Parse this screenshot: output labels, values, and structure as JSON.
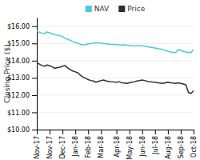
{
  "chart_data": {
    "type": "line",
    "y_label": "Closing Price ($)",
    "categories": [
      "Nov-17",
      null,
      null,
      null,
      null,
      "Nov-17",
      null,
      null,
      null,
      null,
      "Dec-17",
      null,
      null,
      null,
      null,
      "Jan-18",
      null,
      null,
      null,
      null,
      "Feb-18",
      null,
      null,
      null,
      null,
      "Mar-18",
      null,
      null,
      null,
      null,
      null,
      "Apr-18",
      null,
      null,
      null,
      null,
      "May-18",
      null,
      null,
      null,
      null,
      "Jun-18",
      null,
      null,
      null,
      null,
      "Jul-18",
      null,
      null,
      null,
      null,
      "Aug-18",
      null,
      null,
      null,
      null,
      "Sep-18",
      null,
      null,
      null,
      null,
      "Oct-18"
    ],
    "series": [
      {
        "name": "NAV",
        "color": "#4dc8d8",
        "values": [
          15.72,
          15.65,
          15.6,
          15.58,
          15.67,
          15.62,
          15.55,
          15.52,
          15.48,
          15.45,
          15.4,
          15.3,
          15.25,
          15.18,
          15.1,
          15.05,
          15.02,
          14.95,
          14.93,
          14.92,
          14.98,
          15.0,
          15.02,
          15.05,
          15.03,
          15.02,
          15.0,
          14.98,
          14.96,
          14.95,
          14.95,
          14.93,
          14.92,
          14.9,
          14.92,
          14.9,
          14.88,
          14.86,
          14.85,
          14.87,
          14.88,
          14.86,
          14.85,
          14.8,
          14.78,
          14.76,
          14.74,
          14.7,
          14.68,
          14.65,
          14.6,
          14.55,
          14.5,
          14.48,
          14.47,
          14.65,
          14.6,
          14.55,
          14.5,
          14.48,
          14.47,
          14.65
        ]
      },
      {
        "name": "Price",
        "color": "#2d2d3a",
        "values": [
          13.88,
          13.8,
          13.72,
          13.68,
          13.75,
          13.7,
          13.65,
          13.55,
          13.6,
          13.62,
          13.68,
          13.72,
          13.58,
          13.48,
          13.4,
          13.35,
          13.3,
          13.15,
          13.05,
          12.98,
          12.9,
          12.85,
          12.82,
          12.75,
          12.8,
          12.85,
          12.88,
          12.82,
          12.8,
          12.78,
          12.76,
          12.75,
          12.78,
          12.72,
          12.7,
          12.68,
          12.72,
          12.75,
          12.78,
          12.82,
          12.85,
          12.88,
          12.85,
          12.8,
          12.78,
          12.76,
          12.75,
          12.72,
          12.7,
          12.68,
          12.72,
          12.75,
          12.72,
          12.7,
          12.68,
          12.72,
          12.68,
          12.65,
          12.6,
          12.15,
          12.1,
          12.25
        ]
      }
    ],
    "ylim": [
      10.0,
      16.5
    ],
    "yticks": [
      {
        "value": 10.0,
        "label": "$10.00"
      },
      {
        "value": 11.0,
        "label": "$11.00"
      },
      {
        "value": 12.0,
        "label": "$12.00"
      },
      {
        "value": 13.0,
        "label": "$13.00"
      },
      {
        "value": 14.0,
        "label": "$14.00"
      },
      {
        "value": 15.0,
        "label": "$15.00"
      },
      {
        "value": 16.0,
        "label": "$16.00"
      }
    ],
    "grid": true,
    "legend": "top"
  }
}
